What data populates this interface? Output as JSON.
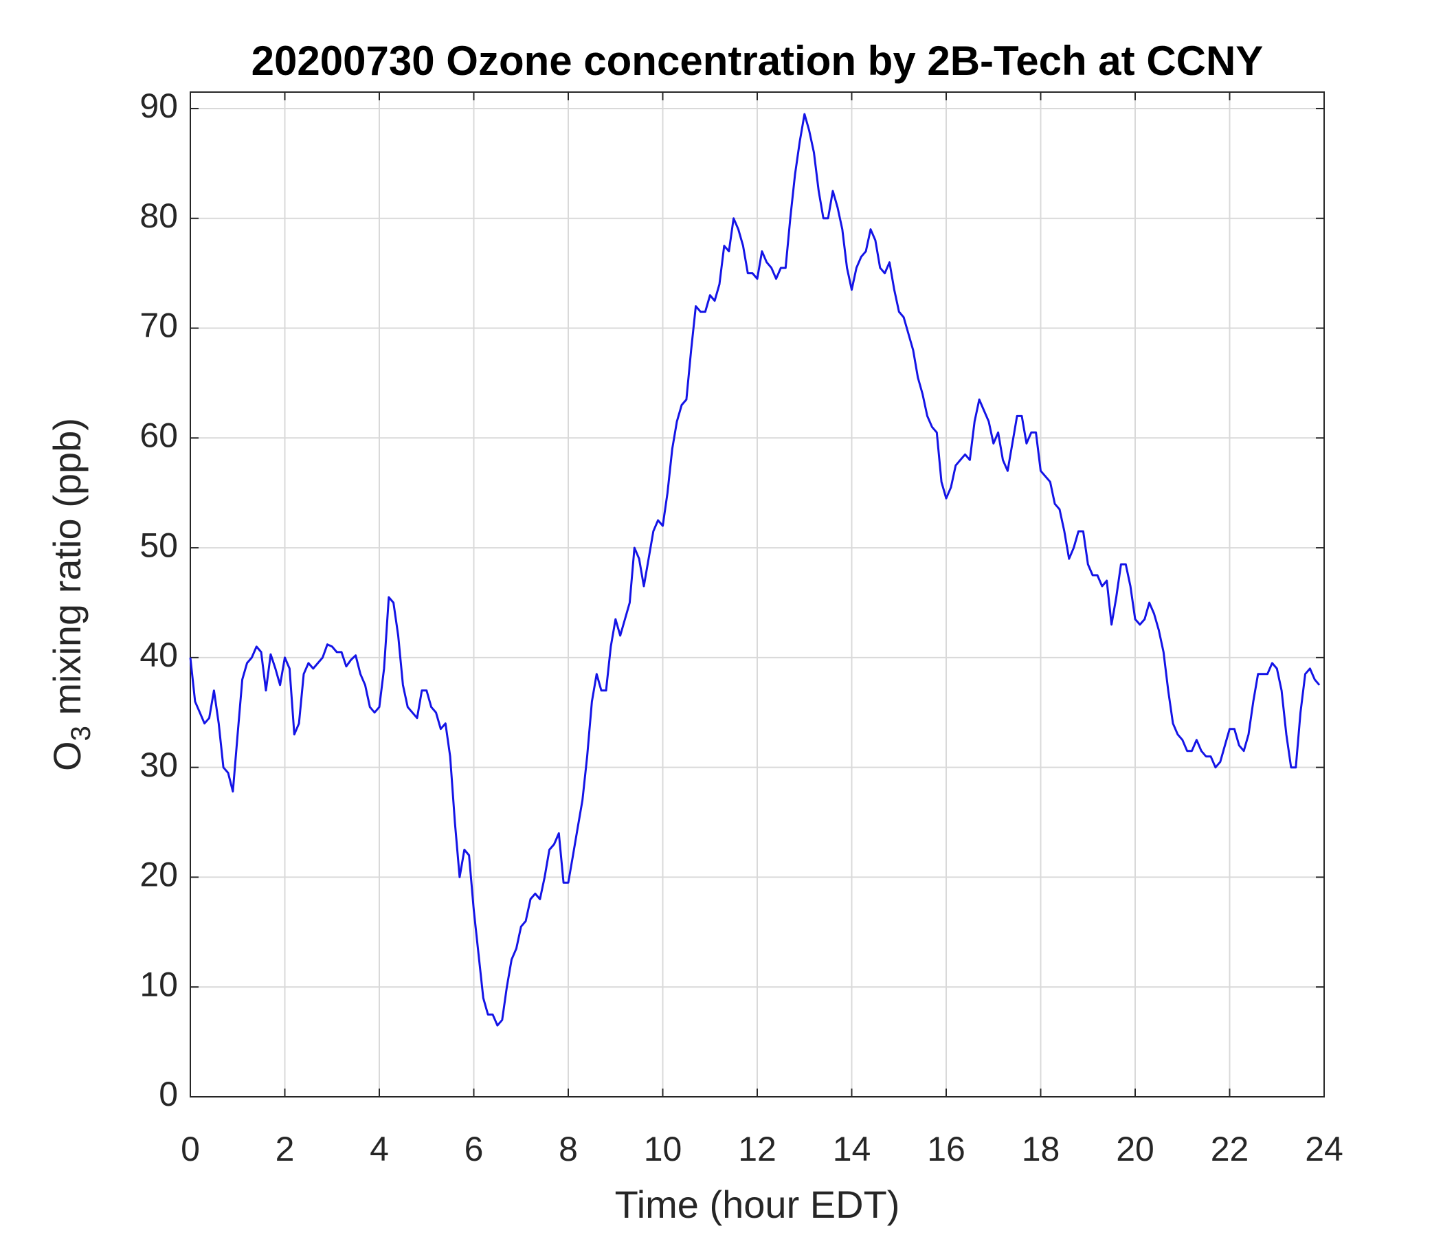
{
  "chart_data": {
    "type": "line",
    "title": "20200730 Ozone concentration by 2B-Tech at CCNY",
    "xlabel": "Time (hour EDT)",
    "ylabel": [
      "O",
      "3",
      " mixing ratio (ppb)"
    ],
    "xlim": [
      0,
      24
    ],
    "ylim": [
      0,
      91.5
    ],
    "xticks": [
      0,
      2,
      4,
      6,
      8,
      10,
      12,
      14,
      16,
      18,
      20,
      22,
      24
    ],
    "yticks": [
      0,
      10,
      20,
      30,
      40,
      50,
      60,
      70,
      80,
      90
    ],
    "grid": true,
    "x": [
      0,
      0.1,
      0.2,
      0.3,
      0.4,
      0.5,
      0.6,
      0.7,
      0.8,
      0.9,
      1,
      1.1,
      1.2,
      1.3,
      1.4,
      1.5,
      1.6,
      1.7,
      1.8,
      1.9,
      2,
      2.1,
      2.2,
      2.3,
      2.4,
      2.5,
      2.6,
      2.7,
      2.8,
      2.9,
      3,
      3.1,
      3.2,
      3.3,
      3.4,
      3.5,
      3.6,
      3.7,
      3.8,
      3.9,
      4,
      4.1,
      4.2,
      4.3,
      4.4,
      4.5,
      4.6,
      4.7,
      4.8,
      4.9,
      5,
      5.1,
      5.2,
      5.3,
      5.4,
      5.5,
      5.6,
      5.7,
      5.8,
      5.9,
      6,
      6.1,
      6.2,
      6.3,
      6.4,
      6.5,
      6.6,
      6.7,
      6.8,
      6.9,
      7,
      7.1,
      7.2,
      7.3,
      7.4,
      7.5,
      7.6,
      7.7,
      7.8,
      7.9,
      8,
      8.1,
      8.2,
      8.3,
      8.4,
      8.5,
      8.6,
      8.7,
      8.8,
      8.9,
      9,
      9.1,
      9.2,
      9.3,
      9.4,
      9.5,
      9.6,
      9.7,
      9.8,
      9.9,
      10,
      10.1,
      10.2,
      10.3,
      10.4,
      10.5,
      10.6,
      10.7,
      10.8,
      10.9,
      11,
      11.1,
      11.2,
      11.3,
      11.4,
      11.5,
      11.6,
      11.7,
      11.8,
      11.9,
      12,
      12.1,
      12.2,
      12.3,
      12.4,
      12.5,
      12.6,
      12.7,
      12.8,
      12.9,
      13,
      13.1,
      13.2,
      13.3,
      13.4,
      13.5,
      13.6,
      13.7,
      13.8,
      13.9,
      14,
      14.1,
      14.2,
      14.3,
      14.4,
      14.5,
      14.6,
      14.7,
      14.8,
      14.9,
      15,
      15.1,
      15.2,
      15.3,
      15.4,
      15.5,
      15.6,
      15.7,
      15.8,
      15.9,
      16,
      16.1,
      16.2,
      16.3,
      16.4,
      16.5,
      16.6,
      16.7,
      16.8,
      16.9,
      17,
      17.1,
      17.2,
      17.3,
      17.4,
      17.5,
      17.6,
      17.7,
      17.8,
      17.9,
      18,
      18.1,
      18.2,
      18.3,
      18.4,
      18.5,
      18.6,
      18.7,
      18.8,
      18.9,
      19,
      19.1,
      19.2,
      19.3,
      19.4,
      19.5,
      19.6,
      19.7,
      19.8,
      19.9,
      20,
      20.1,
      20.2,
      20.3,
      20.4,
      20.5,
      20.6,
      20.7,
      20.8,
      20.9,
      21,
      21.1,
      21.2,
      21.3,
      21.4,
      21.5,
      21.6,
      21.7,
      21.8,
      21.9,
      22,
      22.1,
      22.2,
      22.3,
      22.4,
      22.5,
      22.6,
      22.7,
      22.8,
      22.9,
      23,
      23.1,
      23.2,
      23.3,
      23.4,
      23.5,
      23.6,
      23.7,
      23.8,
      23.9
    ],
    "series": [
      {
        "name": "O3",
        "color": "#1414e6",
        "values": [
          40,
          36,
          35,
          34,
          34.5,
          37,
          34,
          30,
          29.5,
          27.8,
          33,
          38,
          39.5,
          40,
          41,
          40.5,
          37,
          40.3,
          39,
          37.5,
          40,
          39,
          33,
          34,
          38.5,
          39.5,
          39,
          39.5,
          40,
          41.2,
          41,
          40.5,
          40.5,
          39.2,
          39.8,
          40.2,
          38.5,
          37.5,
          35.5,
          35,
          35.5,
          39,
          45.5,
          45,
          42,
          37.5,
          35.5,
          35,
          34.5,
          37,
          37,
          35.5,
          35,
          33.5,
          34,
          31,
          25,
          20,
          22.5,
          22,
          17,
          13,
          9,
          7.5,
          7.5,
          6.5,
          7,
          10,
          12.5,
          13.5,
          15.5,
          16,
          18,
          18.5,
          18,
          20,
          22.5,
          23,
          24,
          19.5,
          19.5,
          22,
          24.5,
          27,
          31,
          36,
          38.5,
          37,
          37,
          41,
          43.5,
          42,
          43.5,
          45,
          50,
          49,
          46.5,
          49,
          51.5,
          52.5,
          52,
          55,
          59,
          61.5,
          63,
          63.5,
          68,
          72,
          71.5,
          71.5,
          73,
          72.5,
          74,
          77.5,
          77,
          80,
          79,
          77.5,
          75,
          75,
          74.5,
          77,
          76,
          75.5,
          74.5,
          75.5,
          75.5,
          80,
          84,
          87,
          89.5,
          88,
          86,
          82.5,
          80,
          80,
          82.5,
          81,
          79,
          75.5,
          73.5,
          75.5,
          76.5,
          77,
          79,
          78,
          75.5,
          75,
          76,
          73.5,
          71.5,
          71,
          69.5,
          68,
          65.5,
          64,
          62,
          61,
          60.5,
          56,
          54.5,
          55.5,
          57.5,
          58,
          58.5,
          58,
          61.5,
          63.5,
          62.5,
          61.5,
          59.5,
          60.5,
          58,
          57,
          59.5,
          62,
          62,
          59.5,
          60.5,
          60.5,
          57,
          56.5,
          56,
          54,
          53.5,
          51.5,
          49,
          50,
          51.5,
          51.5,
          48.5,
          47.5,
          47.5,
          46.5,
          47,
          43,
          45.5,
          48.5,
          48.5,
          46.5,
          43.5,
          43,
          43.5,
          45,
          44,
          42.5,
          40.5,
          37,
          34,
          33,
          32.5,
          31.5,
          31.5,
          32.5,
          31.5,
          31,
          31,
          30,
          30.5,
          32,
          33.5,
          33.5,
          32,
          31.5,
          33,
          36,
          38.5,
          38.5,
          38.5,
          39.5,
          39,
          37,
          33,
          30,
          30,
          35,
          38.5,
          39,
          38,
          37.5
        ]
      }
    ]
  }
}
